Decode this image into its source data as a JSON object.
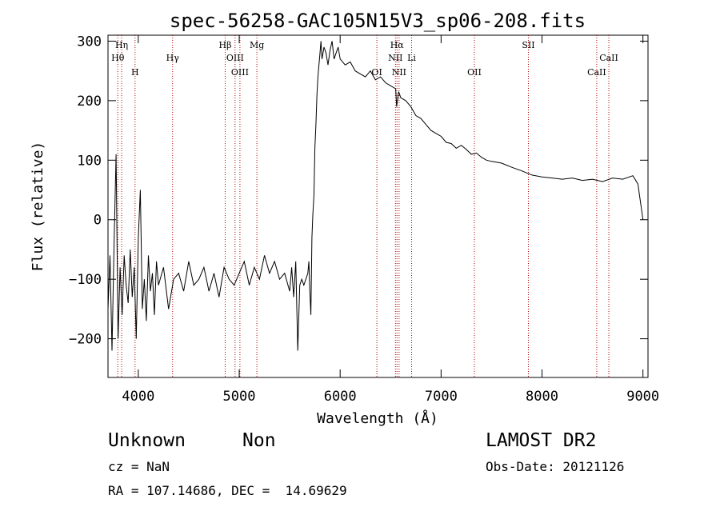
{
  "chart_data": {
    "type": "line",
    "title": "spec-56258-GAC105N15V3_sp06-208.fits",
    "xlabel": "Wavelength (Å)",
    "ylabel": "Flux (relative)",
    "xlim": [
      3700,
      9050
    ],
    "ylim": [
      -265,
      310
    ],
    "xticks": [
      4000,
      5000,
      6000,
      7000,
      8000,
      9000
    ],
    "yticks": [
      -200,
      -100,
      0,
      100,
      200,
      300
    ],
    "grid": false,
    "series": [
      {
        "x": [
          3700,
          3720,
          3740,
          3760,
          3780,
          3800,
          3820,
          3840,
          3860,
          3880,
          3900,
          3920,
          3940,
          3960,
          3980,
          4000,
          4020,
          4040,
          4060,
          4080,
          4100,
          4120,
          4140,
          4160,
          4180,
          4200,
          4250,
          4300,
          4350,
          4400,
          4450,
          4500,
          4550,
          4600,
          4650,
          4700,
          4750,
          4800,
          4850,
          4900,
          4950,
          5000,
          5050,
          5100,
          5150,
          5200,
          5250,
          5300,
          5350,
          5400,
          5450,
          5500,
          5520,
          5540,
          5560,
          5580,
          5600,
          5620,
          5640,
          5660,
          5680,
          5690,
          5700,
          5710,
          5720,
          5730,
          5740,
          5750,
          5760,
          5770,
          5780,
          5790,
          5800,
          5810,
          5820,
          5840,
          5860,
          5880,
          5900,
          5920,
          5940,
          5960,
          5980,
          6000,
          6050,
          6100,
          6150,
          6200,
          6250,
          6300,
          6350,
          6400,
          6450,
          6500,
          6550,
          6560,
          6580,
          6600,
          6650,
          6700,
          6750,
          6800,
          6850,
          6900,
          6950,
          7000,
          7050,
          7100,
          7150,
          7200,
          7250,
          7300,
          7350,
          7400,
          7450,
          7500,
          7600,
          7700,
          7800,
          7900,
          8000,
          8100,
          8200,
          8300,
          8400,
          8500,
          8600,
          8700,
          8800,
          8900,
          8950,
          9000
        ],
        "y": [
          -150,
          -60,
          -220,
          -40,
          110,
          -200,
          -80,
          -160,
          -60,
          -110,
          -140,
          -50,
          -130,
          -80,
          -200,
          -30,
          50,
          -150,
          -100,
          -170,
          -60,
          -120,
          -90,
          -160,
          -70,
          -110,
          -80,
          -150,
          -100,
          -90,
          -120,
          -70,
          -110,
          -100,
          -80,
          -120,
          -90,
          -130,
          -80,
          -100,
          -110,
          -90,
          -70,
          -110,
          -80,
          -100,
          -60,
          -90,
          -70,
          -100,
          -90,
          -120,
          -80,
          -130,
          -70,
          -220,
          -110,
          -100,
          -110,
          -100,
          -90,
          -70,
          -120,
          -160,
          -30,
          10,
          40,
          120,
          160,
          210,
          240,
          260,
          280,
          300,
          270,
          290,
          280,
          260,
          285,
          300,
          270,
          280,
          290,
          270,
          260,
          265,
          250,
          245,
          240,
          250,
          235,
          240,
          230,
          225,
          220,
          190,
          215,
          205,
          200,
          190,
          175,
          170,
          160,
          150,
          145,
          140,
          130,
          128,
          120,
          125,
          118,
          110,
          112,
          105,
          100,
          98,
          95,
          88,
          82,
          75,
          72,
          70,
          68,
          70,
          66,
          68,
          64,
          70,
          68,
          74,
          60,
          0
        ]
      }
    ],
    "lines": [
      {
        "name": "Hη",
        "x": 3835
      },
      {
        "name": "Hθ",
        "x": 3797
      },
      {
        "name": "H",
        "x": 3968
      },
      {
        "name": "Hγ",
        "x": 4340
      },
      {
        "name": "Hβ",
        "x": 4861
      },
      {
        "name": "OIII",
        "x": 4959
      },
      {
        "name": "OIII",
        "x": 5007
      },
      {
        "name": "Mg",
        "x": 5175
      },
      {
        "name": "OI",
        "x": 6364
      },
      {
        "name": "Hα",
        "x": 6563
      },
      {
        "name": "NII",
        "x": 6548
      },
      {
        "name": "NII",
        "x": 6584
      },
      {
        "name": "Li",
        "x": 6708
      },
      {
        "name": "OII",
        "x": 7330
      },
      {
        "name": "SII",
        "x": 7865
      },
      {
        "name": "CaII",
        "x": 8542
      },
      {
        "name": "CaII",
        "x": 8662
      }
    ]
  },
  "info": {
    "class_label": "Unknown",
    "subclass_label": "Non",
    "survey": "LAMOST DR2",
    "cz": "cz = NaN",
    "obs_date": "Obs-Date: 20121126",
    "radec": "RA = 107.14686, DEC =  14.69629"
  }
}
